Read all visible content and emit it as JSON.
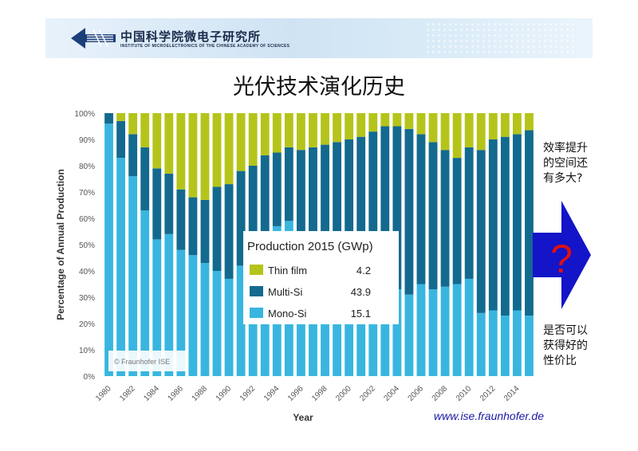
{
  "header": {
    "org_name": "中国科学院微电子研究所",
    "org_name_en": "INSTITUTE OF MICROELECTRONICS OF THE CHINESE ACADEMY OF SCIENCES"
  },
  "slide_title": "光伏技术演化历史",
  "side_notes": {
    "top": "效率提升的空间还有多大?",
    "bottom": "是否可以获得好的性价比"
  },
  "arrow": {
    "symbol": "?",
    "fill": "#1414c8",
    "symbol_color": "#e01010"
  },
  "source_link": "www.ise.fraunhofer.de",
  "colors": {
    "thin_film": "#b5c41a",
    "multi_si": "#136a8e",
    "mono_si": "#38b6e0"
  },
  "chart_data": {
    "type": "bar",
    "stacked": true,
    "title": "",
    "xlabel": "Year",
    "ylabel": "Percentage of Annual Production",
    "ylim": [
      0,
      100
    ],
    "yticks": [
      "0%",
      "10%",
      "20%",
      "30%",
      "40%",
      "50%",
      "60%",
      "70%",
      "80%",
      "90%",
      "100%"
    ],
    "xtick_labels": [
      "1980",
      "1982",
      "1984",
      "1986",
      "1988",
      "1990",
      "1992",
      "1994",
      "1996",
      "1998",
      "2000",
      "2002",
      "2004",
      "2006",
      "2008",
      "2010",
      "2012",
      "2014"
    ],
    "categories": [
      1980,
      1981,
      1982,
      1983,
      1984,
      1985,
      1986,
      1987,
      1988,
      1989,
      1990,
      1991,
      1992,
      1993,
      1994,
      1995,
      1996,
      1997,
      1998,
      1999,
      2000,
      2001,
      2002,
      2003,
      2004,
      2005,
      2006,
      2007,
      2008,
      2009,
      2010,
      2011,
      2012,
      2013,
      2014,
      2015
    ],
    "series": [
      {
        "name": "Mono-Si",
        "values": [
          96,
          83,
          76,
          63,
          52,
          54,
          48,
          46,
          43,
          40,
          37,
          42,
          44,
          45,
          57,
          59,
          52,
          50,
          47,
          45,
          42,
          40,
          36,
          34,
          33,
          31,
          35,
          33,
          34,
          35,
          37,
          24,
          25,
          23,
          25,
          23
        ]
      },
      {
        "name": "Multi-Si",
        "values": [
          4,
          14,
          16,
          24,
          27,
          23,
          23,
          22,
          24,
          32,
          36,
          36,
          36,
          39,
          28,
          28,
          34,
          37,
          41,
          44,
          48,
          51,
          57,
          61,
          62,
          63,
          57,
          56,
          52,
          48,
          50,
          62,
          65,
          68,
          67,
          70.5
        ]
      },
      {
        "name": "Thin film",
        "values": [
          0,
          3,
          8,
          13,
          21,
          23,
          29,
          32,
          33,
          28,
          27,
          22,
          20,
          16,
          15,
          13,
          14,
          13,
          12,
          11,
          10,
          9,
          7,
          5,
          5,
          6,
          8,
          11,
          14,
          17,
          13,
          14,
          10,
          9,
          8,
          6.5
        ]
      }
    ],
    "legend": {
      "title": "Production 2015 (GWp)",
      "entries": [
        {
          "label": "Thin film",
          "value": "4.2",
          "series": "Thin film"
        },
        {
          "label": "Multi-Si",
          "value": "43.9",
          "series": "Multi-Si"
        },
        {
          "label": "Mono-Si",
          "value": "15.1",
          "series": "Mono-Si"
        }
      ],
      "placement": "center"
    },
    "watermark": "© Fraunhofer ISE",
    "grid": false
  }
}
